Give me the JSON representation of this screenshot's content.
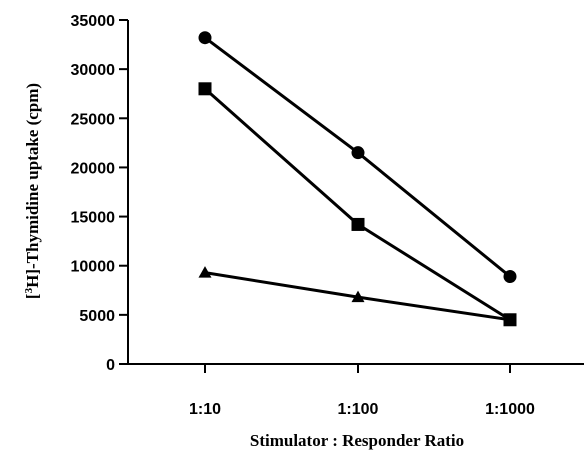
{
  "chart_data": {
    "type": "line",
    "title": "",
    "xlabel": "Stimulator : Responder Ratio",
    "ylabel_parts": {
      "prefix": "[",
      "superscript": "3",
      "suffix": "H]-Thymidine uptake (cpm)"
    },
    "categories": [
      "1:10",
      "1:100",
      "1:1000"
    ],
    "ylim": [
      0,
      35000
    ],
    "yticks": [
      0,
      5000,
      10000,
      15000,
      20000,
      25000,
      30000,
      35000
    ],
    "grid": false,
    "series": [
      {
        "marker": "circle",
        "color": "#000000",
        "values": [
          33200,
          21500,
          8900
        ]
      },
      {
        "marker": "square",
        "color": "#000000",
        "values": [
          28000,
          14200,
          4500
        ]
      },
      {
        "marker": "triangle",
        "color": "#000000",
        "values": [
          9300,
          6800,
          4500
        ]
      }
    ]
  }
}
